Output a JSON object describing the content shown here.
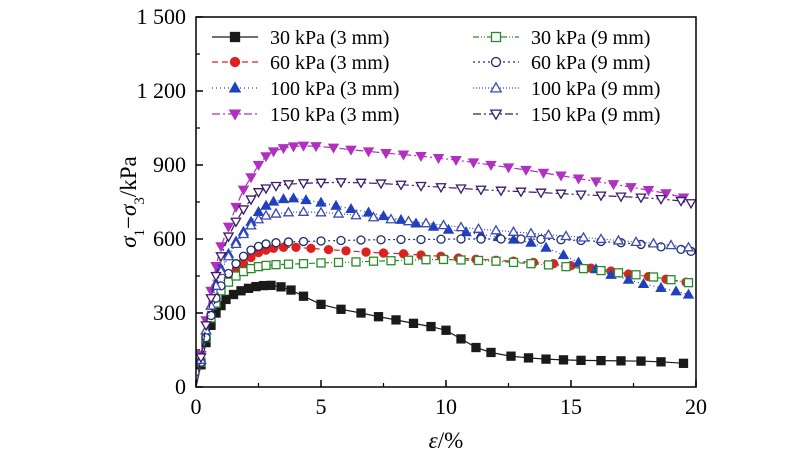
{
  "chart_data": {
    "type": "line",
    "xlabel": "ε/%",
    "ylabel": "σ1−σ3/kPa",
    "xlim": [
      0,
      20
    ],
    "ylim": [
      0,
      1500
    ],
    "xticks": [
      0,
      5,
      10,
      15,
      20
    ],
    "yticks": [
      0,
      300,
      600,
      900,
      1200,
      1500
    ],
    "xtick_labels": [
      "0",
      "5",
      "10",
      "15",
      "20"
    ],
    "ytick_labels": [
      "0",
      "300",
      "600",
      "900",
      "1 200",
      "1 500"
    ],
    "grid": false,
    "legend": {
      "placement": "top",
      "columns": 2
    },
    "series": [
      {
        "name": "30 kPa (3 mm)",
        "color": "#1a1a1a",
        "marker": "square",
        "filled": true,
        "dash": "",
        "points": [
          [
            0,
            0
          ],
          [
            0.2,
            90
          ],
          [
            0.4,
            180
          ],
          [
            0.6,
            250
          ],
          [
            0.8,
            300
          ],
          [
            1.0,
            330
          ],
          [
            1.2,
            355
          ],
          [
            1.5,
            375
          ],
          [
            1.8,
            390
          ],
          [
            2.1,
            400
          ],
          [
            2.4,
            407
          ],
          [
            2.7,
            411
          ],
          [
            3.0,
            412
          ],
          [
            3.4,
            406
          ],
          [
            3.8,
            393
          ],
          [
            4.3,
            368
          ],
          [
            5.0,
            335
          ],
          [
            5.8,
            315
          ],
          [
            6.6,
            300
          ],
          [
            7.3,
            285
          ],
          [
            8.0,
            272
          ],
          [
            8.7,
            258
          ],
          [
            9.4,
            245
          ],
          [
            10.0,
            230
          ],
          [
            10.6,
            195
          ],
          [
            11.2,
            160
          ],
          [
            11.8,
            140
          ],
          [
            12.6,
            125
          ],
          [
            13.3,
            118
          ],
          [
            14.0,
            113
          ],
          [
            14.7,
            110
          ],
          [
            15.4,
            108
          ],
          [
            16.2,
            107
          ],
          [
            17.0,
            106
          ],
          [
            17.8,
            105
          ],
          [
            18.6,
            102
          ],
          [
            19.5,
            96
          ]
        ]
      },
      {
        "name": "60 kPa (3 mm)",
        "color": "#e02020",
        "marker": "circle",
        "filled": true,
        "dash": "6,4",
        "points": [
          [
            0,
            0
          ],
          [
            0.2,
            100
          ],
          [
            0.4,
            200
          ],
          [
            0.6,
            290
          ],
          [
            0.8,
            350
          ],
          [
            1.0,
            400
          ],
          [
            1.3,
            440
          ],
          [
            1.6,
            470
          ],
          [
            1.9,
            500
          ],
          [
            2.2,
            525
          ],
          [
            2.5,
            545
          ],
          [
            2.8,
            555
          ],
          [
            3.1,
            562
          ],
          [
            3.5,
            566
          ],
          [
            4.0,
            566
          ],
          [
            4.6,
            562
          ],
          [
            5.3,
            557
          ],
          [
            6.0,
            552
          ],
          [
            6.8,
            547
          ],
          [
            7.5,
            543
          ],
          [
            8.3,
            540
          ],
          [
            9.0,
            535
          ],
          [
            9.8,
            530
          ],
          [
            10.5,
            523
          ],
          [
            11.2,
            518
          ],
          [
            12.0,
            514
          ],
          [
            12.7,
            510
          ],
          [
            13.5,
            505
          ],
          [
            14.3,
            500
          ],
          [
            15.0,
            492
          ],
          [
            15.8,
            482
          ],
          [
            16.6,
            470
          ],
          [
            17.3,
            458
          ],
          [
            18.1,
            448
          ],
          [
            18.8,
            437
          ],
          [
            19.6,
            425
          ]
        ]
      },
      {
        "name": "100 kPa (3 mm)",
        "color": "#2040c0",
        "marker": "triangle-up",
        "filled": true,
        "dash": "1,3",
        "points": [
          [
            0,
            0
          ],
          [
            0.2,
            110
          ],
          [
            0.4,
            230
          ],
          [
            0.6,
            330
          ],
          [
            0.8,
            420
          ],
          [
            1.0,
            480
          ],
          [
            1.3,
            540
          ],
          [
            1.6,
            590
          ],
          [
            1.9,
            630
          ],
          [
            2.2,
            670
          ],
          [
            2.5,
            710
          ],
          [
            2.8,
            735
          ],
          [
            3.1,
            752
          ],
          [
            3.5,
            762
          ],
          [
            3.9,
            765
          ],
          [
            4.4,
            758
          ],
          [
            5.0,
            748
          ],
          [
            5.6,
            735
          ],
          [
            6.2,
            722
          ],
          [
            6.9,
            708
          ],
          [
            7.5,
            693
          ],
          [
            8.2,
            678
          ],
          [
            8.8,
            663
          ],
          [
            9.5,
            650
          ],
          [
            10.1,
            638
          ],
          [
            10.8,
            628
          ],
          [
            11.4,
            618
          ],
          [
            12.1,
            608
          ],
          [
            12.7,
            598
          ],
          [
            13.4,
            585
          ],
          [
            14.0,
            565
          ],
          [
            14.7,
            535
          ],
          [
            15.3,
            505
          ],
          [
            16.0,
            478
          ],
          [
            16.6,
            455
          ],
          [
            17.3,
            435
          ],
          [
            17.9,
            418
          ],
          [
            18.6,
            402
          ],
          [
            19.2,
            388
          ],
          [
            19.7,
            375
          ]
        ]
      },
      {
        "name": "150 kPa (3 mm)",
        "color": "#b030c0",
        "marker": "triangle-down",
        "filled": true,
        "dash": "8,3,2,3",
        "points": [
          [
            0,
            0
          ],
          [
            0.2,
            130
          ],
          [
            0.4,
            270
          ],
          [
            0.6,
            390
          ],
          [
            0.8,
            490
          ],
          [
            1.0,
            570
          ],
          [
            1.3,
            650
          ],
          [
            1.6,
            730
          ],
          [
            1.9,
            800
          ],
          [
            2.2,
            850
          ],
          [
            2.5,
            900
          ],
          [
            2.8,
            935
          ],
          [
            3.1,
            955
          ],
          [
            3.5,
            968
          ],
          [
            3.9,
            975
          ],
          [
            4.3,
            978
          ],
          [
            4.8,
            976
          ],
          [
            5.5,
            970
          ],
          [
            6.2,
            962
          ],
          [
            6.9,
            955
          ],
          [
            7.6,
            948
          ],
          [
            8.3,
            942
          ],
          [
            9.0,
            936
          ],
          [
            9.7,
            928
          ],
          [
            10.4,
            920
          ],
          [
            11.1,
            910
          ],
          [
            11.8,
            900
          ],
          [
            12.5,
            890
          ],
          [
            13.2,
            880
          ],
          [
            13.9,
            868
          ],
          [
            14.6,
            857
          ],
          [
            15.3,
            845
          ],
          [
            16.0,
            833
          ],
          [
            16.7,
            822
          ],
          [
            17.4,
            810
          ],
          [
            18.1,
            798
          ],
          [
            18.8,
            785
          ],
          [
            19.5,
            768
          ]
        ]
      },
      {
        "name": "30 kPa (9 mm)",
        "color": "#2a8a2a",
        "marker": "square",
        "filled": false,
        "dash": "6,2,1,2,1,2",
        "points": [
          [
            0,
            0
          ],
          [
            0.2,
            100
          ],
          [
            0.4,
            200
          ],
          [
            0.6,
            280
          ],
          [
            0.8,
            340
          ],
          [
            1.0,
            390
          ],
          [
            1.3,
            425
          ],
          [
            1.6,
            450
          ],
          [
            1.9,
            468
          ],
          [
            2.2,
            480
          ],
          [
            2.5,
            488
          ],
          [
            2.8,
            493
          ],
          [
            3.2,
            496
          ],
          [
            3.7,
            498
          ],
          [
            4.3,
            500
          ],
          [
            5.0,
            503
          ],
          [
            5.7,
            505
          ],
          [
            6.4,
            507
          ],
          [
            7.1,
            510
          ],
          [
            7.8,
            512
          ],
          [
            8.5,
            514
          ],
          [
            9.2,
            516
          ],
          [
            9.9,
            517
          ],
          [
            10.6,
            515
          ],
          [
            11.3,
            513
          ],
          [
            12.0,
            510
          ],
          [
            12.7,
            505
          ],
          [
            13.4,
            500
          ],
          [
            14.1,
            495
          ],
          [
            14.8,
            488
          ],
          [
            15.5,
            480
          ],
          [
            16.2,
            472
          ],
          [
            16.9,
            463
          ],
          [
            17.6,
            455
          ],
          [
            18.3,
            446
          ],
          [
            19.0,
            435
          ],
          [
            19.7,
            423
          ]
        ]
      },
      {
        "name": "60 kPa (9 mm)",
        "color": "#1a2a6a",
        "marker": "circle",
        "filled": false,
        "dash": "2,3",
        "points": [
          [
            0,
            0
          ],
          [
            0.2,
            100
          ],
          [
            0.4,
            200
          ],
          [
            0.6,
            290
          ],
          [
            0.8,
            360
          ],
          [
            1.0,
            410
          ],
          [
            1.3,
            460
          ],
          [
            1.6,
            500
          ],
          [
            1.9,
            530
          ],
          [
            2.2,
            555
          ],
          [
            2.5,
            570
          ],
          [
            2.8,
            580
          ],
          [
            3.2,
            585
          ],
          [
            3.7,
            588
          ],
          [
            4.3,
            590
          ],
          [
            5.0,
            592
          ],
          [
            5.8,
            594
          ],
          [
            6.6,
            596
          ],
          [
            7.4,
            597
          ],
          [
            8.2,
            598
          ],
          [
            9.0,
            598
          ],
          [
            9.8,
            599
          ],
          [
            10.6,
            600
          ],
          [
            11.4,
            600
          ],
          [
            12.2,
            600
          ],
          [
            13.0,
            600
          ],
          [
            13.8,
            599
          ],
          [
            14.6,
            597
          ],
          [
            15.4,
            594
          ],
          [
            16.2,
            590
          ],
          [
            17.0,
            585
          ],
          [
            17.8,
            578
          ],
          [
            18.6,
            568
          ],
          [
            19.4,
            558
          ],
          [
            19.8,
            550
          ]
        ]
      },
      {
        "name": "100 kPa (9 mm)",
        "color": "#3a4ab0",
        "marker": "triangle-up",
        "filled": false,
        "dash": "1,2",
        "points": [
          [
            0,
            0
          ],
          [
            0.2,
            110
          ],
          [
            0.4,
            230
          ],
          [
            0.6,
            330
          ],
          [
            0.8,
            410
          ],
          [
            1.0,
            470
          ],
          [
            1.3,
            530
          ],
          [
            1.6,
            580
          ],
          [
            1.9,
            620
          ],
          [
            2.2,
            655
          ],
          [
            2.5,
            680
          ],
          [
            2.8,
            695
          ],
          [
            3.2,
            703
          ],
          [
            3.7,
            708
          ],
          [
            4.3,
            710
          ],
          [
            5.0,
            708
          ],
          [
            5.7,
            703
          ],
          [
            6.4,
            696
          ],
          [
            7.1,
            688
          ],
          [
            7.8,
            680
          ],
          [
            8.5,
            672
          ],
          [
            9.2,
            664
          ],
          [
            9.9,
            656
          ],
          [
            10.6,
            648
          ],
          [
            11.3,
            641
          ],
          [
            12.0,
            635
          ],
          [
            12.7,
            629
          ],
          [
            13.4,
            623
          ],
          [
            14.1,
            617
          ],
          [
            14.8,
            612
          ],
          [
            15.5,
            606
          ],
          [
            16.2,
            600
          ],
          [
            16.9,
            594
          ],
          [
            17.6,
            588
          ],
          [
            18.3,
            582
          ],
          [
            19.0,
            575
          ],
          [
            19.7,
            566
          ]
        ]
      },
      {
        "name": "150 kPa (9 mm)",
        "color": "#3a1a6a",
        "marker": "triangle-down",
        "filled": false,
        "dash": "8,3,2,3",
        "points": [
          [
            0,
            0
          ],
          [
            0.2,
            120
          ],
          [
            0.4,
            250
          ],
          [
            0.6,
            360
          ],
          [
            0.8,
            450
          ],
          [
            1.0,
            530
          ],
          [
            1.3,
            610
          ],
          [
            1.6,
            670
          ],
          [
            1.9,
            720
          ],
          [
            2.2,
            760
          ],
          [
            2.5,
            790
          ],
          [
            2.8,
            805
          ],
          [
            3.2,
            815
          ],
          [
            3.7,
            822
          ],
          [
            4.3,
            826
          ],
          [
            5.0,
            828
          ],
          [
            5.8,
            830
          ],
          [
            6.6,
            828
          ],
          [
            7.4,
            825
          ],
          [
            8.2,
            820
          ],
          [
            9.0,
            815
          ],
          [
            9.8,
            810
          ],
          [
            10.6,
            805
          ],
          [
            11.4,
            800
          ],
          [
            12.2,
            796
          ],
          [
            13.0,
            792
          ],
          [
            13.8,
            788
          ],
          [
            14.6,
            784
          ],
          [
            15.4,
            780
          ],
          [
            16.2,
            776
          ],
          [
            17.0,
            772
          ],
          [
            17.8,
            768
          ],
          [
            18.6,
            762
          ],
          [
            19.4,
            754
          ],
          [
            19.8,
            745
          ]
        ]
      }
    ]
  }
}
